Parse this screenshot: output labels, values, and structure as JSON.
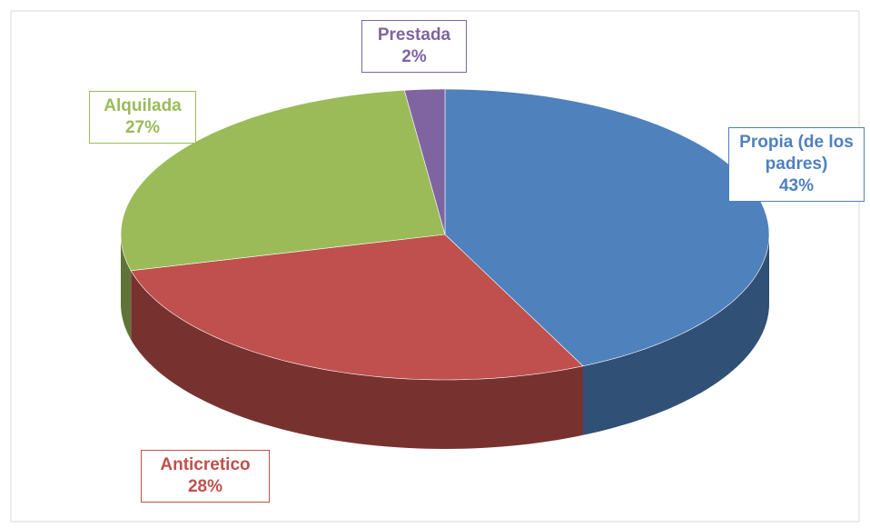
{
  "chart_data": {
    "type": "pie",
    "categories": [
      "Propia (de los padres)",
      "Anticretico",
      "Alquilada",
      "Prestada"
    ],
    "values": [
      43,
      28,
      27,
      2
    ],
    "value_labels": [
      "43%",
      "28%",
      "27%",
      "2%"
    ],
    "colors": [
      "#4f81bd",
      "#c0504d",
      "#9bbb59",
      "#8064a2"
    ],
    "three_d": true
  }
}
